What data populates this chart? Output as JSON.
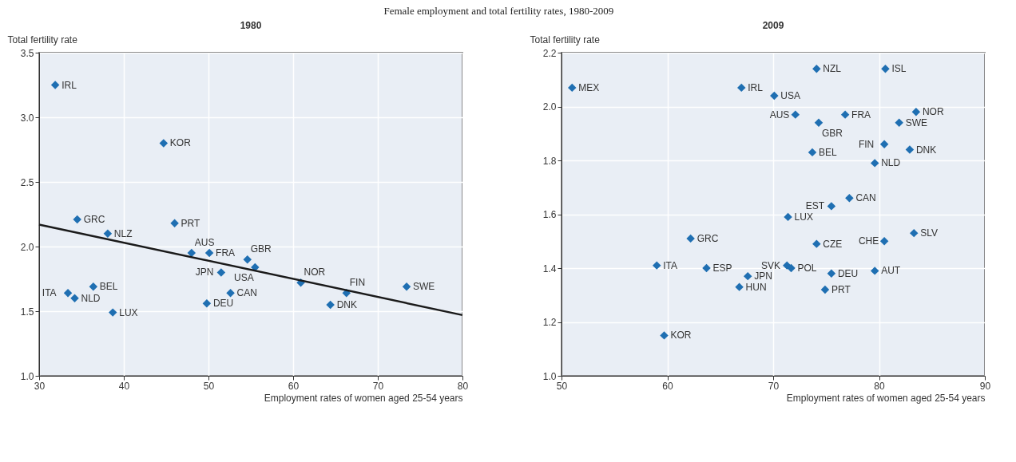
{
  "chart_data": [
    {
      "type": "scatter",
      "title": "1980",
      "xlabel": "Employment rates of women aged 25-54 years",
      "ylabel": "Total fertility rate",
      "xlim": [
        30,
        80
      ],
      "xticks": [
        30,
        40,
        50,
        60,
        70,
        80
      ],
      "ylim": [
        1.0,
        3.5
      ],
      "yticks": [
        {
          "value": 1.0,
          "label": "1.0"
        },
        1.5,
        {
          "value": 2.0,
          "label": "2.0"
        },
        2.5,
        {
          "value": 3.0,
          "label": "3.0"
        },
        3.5
      ],
      "grid": true,
      "marker": "diamond",
      "series": [
        {
          "color": "#1f6fb2",
          "x": [
            31.9,
            44.7,
            34.5,
            38.1,
            46.0,
            48.0,
            50.1,
            54.6,
            55.5,
            51.5,
            52.6,
            49.8,
            60.9,
            66.3,
            64.4,
            73.4,
            33.4,
            34.2,
            36.4,
            38.7
          ],
          "values": [
            3.25,
            2.8,
            2.21,
            2.1,
            2.18,
            1.95,
            1.95,
            1.9,
            1.84,
            1.8,
            1.64,
            1.56,
            1.72,
            1.64,
            1.55,
            1.69,
            1.64,
            1.6,
            1.69,
            1.49
          ]
        },
        {
          "type": "line",
          "marker": "none",
          "color": "#1a1a1a",
          "x": [
            30,
            80
          ],
          "values": [
            2.17,
            1.47
          ]
        }
      ],
      "annotations": [
        "Female employment and total fertility rates, 1980-2009",
        {
          "text": "IRL",
          "x": 31.9,
          "y": 3.25
        },
        {
          "text": "KOR",
          "x": 44.7,
          "y": 2.8
        },
        {
          "text": "GRC",
          "x": 34.5,
          "y": 2.21
        },
        {
          "text": "NLZ",
          "x": 38.1,
          "y": 2.1
        },
        {
          "text": "PRT",
          "x": 46.0,
          "y": 2.18
        },
        {
          "text": "AUS",
          "x": 48.0,
          "y": 1.95
        },
        {
          "text": "FRA",
          "x": 50.1,
          "y": 1.95
        },
        {
          "text": "GBR",
          "x": 54.6,
          "y": 1.9
        },
        {
          "text": "USA",
          "x": 55.5,
          "y": 1.84
        },
        {
          "text": "JPN",
          "x": 51.5,
          "y": 1.8
        },
        {
          "text": "CAN",
          "x": 52.6,
          "y": 1.64
        },
        {
          "text": "DEU",
          "x": 49.8,
          "y": 1.56
        },
        {
          "text": "NOR",
          "x": 60.9,
          "y": 1.72
        },
        {
          "text": "FIN",
          "x": 66.3,
          "y": 1.64
        },
        {
          "text": "DNK",
          "x": 64.4,
          "y": 1.55
        },
        {
          "text": "SWE",
          "x": 73.4,
          "y": 1.69
        },
        {
          "text": "ITA",
          "x": 33.4,
          "y": 1.64
        },
        {
          "text": "NLD",
          "x": 34.2,
          "y": 1.6
        },
        {
          "text": "BEL",
          "x": 36.4,
          "y": 1.69
        },
        {
          "text": "LUX",
          "x": 38.7,
          "y": 1.49
        }
      ]
    },
    {
      "type": "scatter",
      "title": "2009",
      "xlabel": "Employment rates of women aged 25-54 years",
      "ylabel": "Total fertility rate",
      "xlim": [
        50,
        90
      ],
      "xticks": [
        50,
        60,
        70,
        80,
        90
      ],
      "ylim": [
        1.0,
        2.2
      ],
      "yticks": [
        {
          "value": 1.0,
          "label": "1.0"
        },
        1.2,
        1.4,
        1.6,
        1.8,
        {
          "value": 2.0,
          "label": "2.0"
        },
        2.2
      ],
      "grid": true,
      "marker": "diamond",
      "series": [
        {
          "color": "#1f6fb2",
          "x": [
            51.0,
            67.0,
            74.1,
            80.6,
            70.1,
            72.1,
            74.3,
            76.8,
            83.5,
            81.9,
            80.5,
            82.9,
            73.7,
            79.6,
            77.2,
            75.5,
            71.4,
            83.3,
            80.5,
            74.1,
            71.3,
            71.7,
            62.2,
            59.0,
            63.7,
            67.6,
            66.8,
            75.5,
            79.6,
            74.9,
            59.7
          ],
          "values": [
            2.07,
            2.07,
            2.14,
            2.14,
            2.04,
            1.97,
            1.94,
            1.97,
            1.98,
            1.94,
            1.86,
            1.84,
            1.83,
            1.79,
            1.66,
            1.63,
            1.59,
            1.53,
            1.5,
            1.49,
            1.41,
            1.4,
            1.51,
            1.41,
            1.4,
            1.37,
            1.33,
            1.38,
            1.39,
            1.32,
            1.15
          ]
        }
      ],
      "annotations": [
        {
          "text": "MEX",
          "x": 51.0,
          "y": 2.07
        },
        {
          "text": "IRL",
          "x": 67.0,
          "y": 2.07
        },
        {
          "text": "NZL",
          "x": 74.1,
          "y": 2.14
        },
        {
          "text": "ISL",
          "x": 80.6,
          "y": 2.14
        },
        {
          "text": "USA",
          "x": 70.1,
          "y": 2.04
        },
        {
          "text": "AUS",
          "x": 72.1,
          "y": 1.97
        },
        {
          "text": "GBR",
          "x": 74.3,
          "y": 1.94
        },
        {
          "text": "FRA",
          "x": 76.8,
          "y": 1.97
        },
        {
          "text": "NOR",
          "x": 83.5,
          "y": 1.98
        },
        {
          "text": "SWE",
          "x": 81.9,
          "y": 1.94
        },
        {
          "text": "FIN",
          "x": 80.5,
          "y": 1.86
        },
        {
          "text": "DNK",
          "x": 82.9,
          "y": 1.84
        },
        {
          "text": "BEL",
          "x": 73.7,
          "y": 1.83
        },
        {
          "text": "NLD",
          "x": 79.6,
          "y": 1.79
        },
        {
          "text": "CAN",
          "x": 77.2,
          "y": 1.66
        },
        {
          "text": "EST",
          "x": 75.5,
          "y": 1.63
        },
        {
          "text": "LUX",
          "x": 71.4,
          "y": 1.59
        },
        {
          "text": "SLV",
          "x": 83.3,
          "y": 1.53
        },
        {
          "text": "CHE",
          "x": 80.5,
          "y": 1.5
        },
        {
          "text": "CZE",
          "x": 74.1,
          "y": 1.49
        },
        {
          "text": "SVK",
          "x": 71.3,
          "y": 1.41
        },
        {
          "text": "POL",
          "x": 71.7,
          "y": 1.4
        },
        {
          "text": "GRC",
          "x": 62.2,
          "y": 1.51
        },
        {
          "text": "ITA",
          "x": 59.0,
          "y": 1.41
        },
        {
          "text": "ESP",
          "x": 63.7,
          "y": 1.4
        },
        {
          "text": "JPN",
          "x": 67.6,
          "y": 1.37
        },
        {
          "text": "HUN",
          "x": 66.8,
          "y": 1.33
        },
        {
          "text": "DEU",
          "x": 75.5,
          "y": 1.38
        },
        {
          "text": "AUT",
          "x": 79.6,
          "y": 1.39
        },
        {
          "text": "PRT",
          "x": 74.9,
          "y": 1.32
        },
        {
          "text": "KOR",
          "x": 59.7,
          "y": 1.15
        }
      ]
    }
  ]
}
